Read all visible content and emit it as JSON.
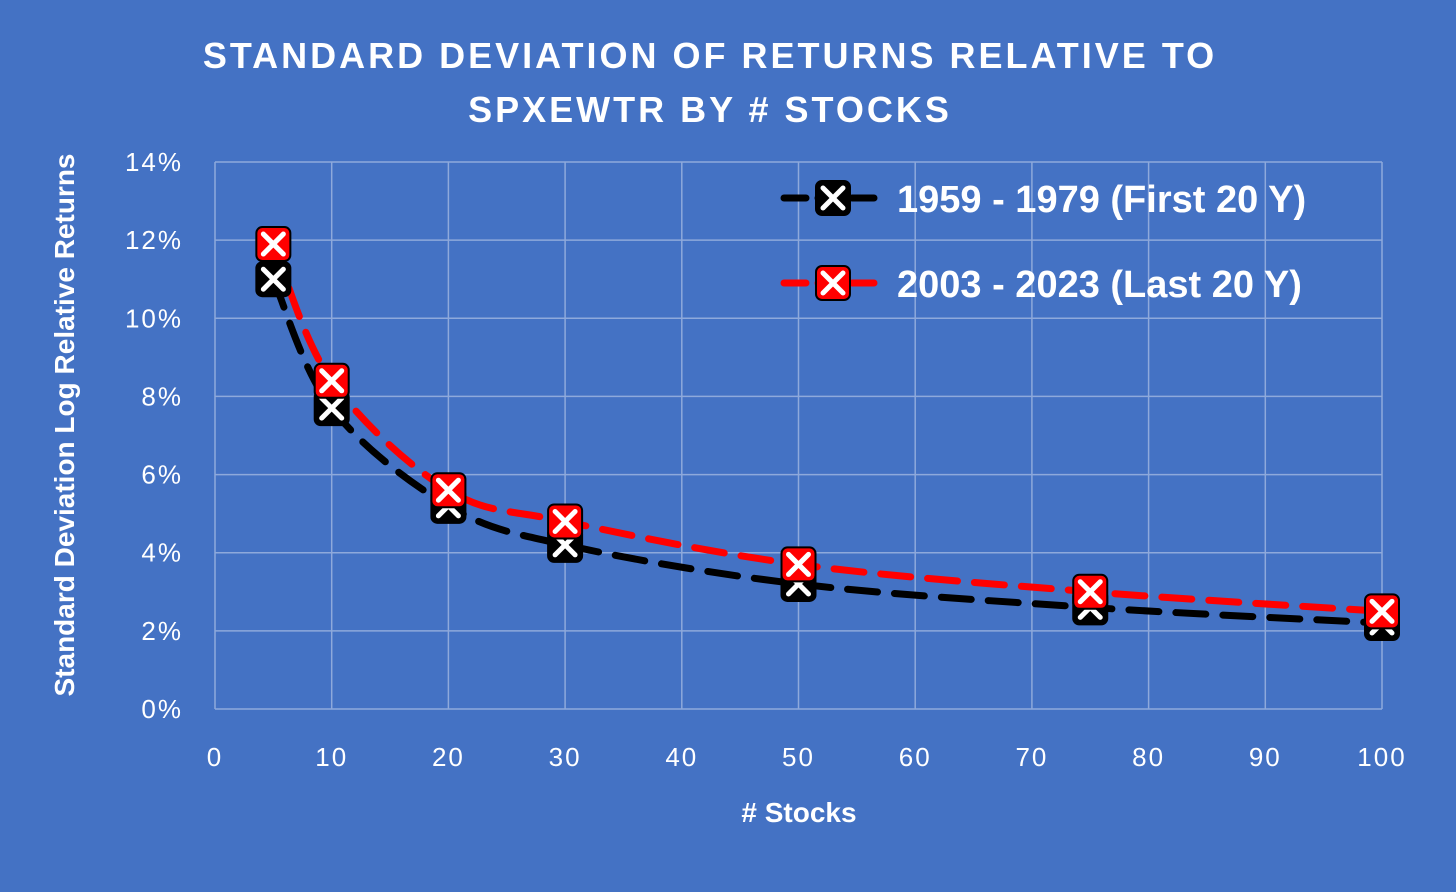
{
  "chart_data": {
    "type": "line",
    "title_lines": [
      "STANDARD DEVIATION OF RETURNS RELATIVE TO",
      "SPXEWTR BY # STOCKS"
    ],
    "xlabel": "# Stocks",
    "ylabel": "Standard Deviation Log Relative Returns",
    "xlim": [
      0,
      100
    ],
    "ylim": [
      0,
      0.14
    ],
    "x_ticks": [
      0,
      10,
      20,
      30,
      40,
      50,
      60,
      70,
      80,
      90,
      100
    ],
    "y_ticks": [
      0,
      0.02,
      0.04,
      0.06,
      0.08,
      0.1,
      0.12,
      0.14
    ],
    "x_tick_labels": [
      "0",
      "10",
      "20",
      "30",
      "40",
      "50",
      "60",
      "70",
      "80",
      "90",
      "100"
    ],
    "y_tick_labels": [
      "0%",
      "2%",
      "4%",
      "6%",
      "8%",
      "10%",
      "12%",
      "14%"
    ],
    "grid": true,
    "legend_position": "top-right",
    "series": [
      {
        "name": "1959 - 1979 (First 20 Y)",
        "color": "#000000",
        "x": [
          5,
          10,
          20,
          30,
          50,
          75,
          100
        ],
        "y": [
          0.11,
          0.077,
          0.052,
          0.042,
          0.032,
          0.026,
          0.022
        ]
      },
      {
        "name": "2003 - 2023 (Last 20 Y)",
        "color": "#FF0000",
        "x": [
          5,
          10,
          20,
          30,
          50,
          75,
          100
        ],
        "y": [
          0.119,
          0.084,
          0.056,
          0.048,
          0.037,
          0.03,
          0.025
        ]
      }
    ],
    "colors": {
      "background": "#4472C4",
      "grid": "#8EA9DB",
      "text": "#FFFFFF"
    }
  }
}
